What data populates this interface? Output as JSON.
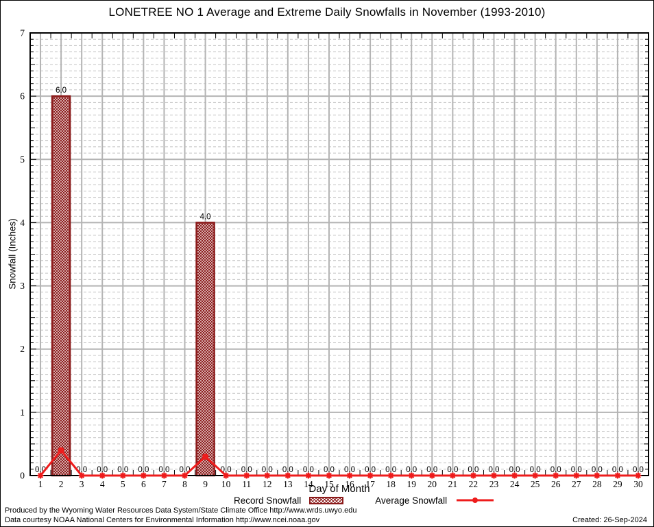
{
  "title": "LONETREE NO 1 Average and Extreme Daily Snowfalls in November (1993-2010)",
  "chart_data": {
    "type": "bar",
    "title": "LONETREE NO 1 Average and Extreme Daily Snowfalls in November (1993-2010)",
    "xlabel": "Day of Month",
    "ylabel": "Snowfall (Inches)",
    "ylim": [
      0,
      7
    ],
    "y_major_step": 1,
    "y_minor_step": 0.1,
    "grid": "major solid + minor dashed, vertical line per day",
    "legend_position": "bottom center",
    "categories": [
      1,
      2,
      3,
      4,
      5,
      6,
      7,
      8,
      9,
      10,
      11,
      12,
      13,
      14,
      15,
      16,
      17,
      18,
      19,
      20,
      21,
      22,
      23,
      24,
      25,
      26,
      27,
      28,
      29,
      30
    ],
    "series": [
      {
        "name": "Record Snowfall",
        "type": "bar",
        "values": [
          0,
          6,
          0,
          0,
          0,
          0,
          0,
          0,
          4,
          0,
          0,
          0,
          0,
          0,
          0,
          0,
          0,
          0,
          0,
          0,
          0,
          0,
          0,
          0,
          0,
          0,
          0,
          0,
          0,
          0
        ],
        "value_labels": [
          "0.0",
          "6.0",
          "0.0",
          "0.0",
          "0.0",
          "0.0",
          "0.0",
          "0.0",
          "4.0",
          "0.0",
          "0.0",
          "0.0",
          "0.0",
          "0.0",
          "0.0",
          "0.0",
          "0.0",
          "0.0",
          "0.0",
          "0.0",
          "0.0",
          "0.0",
          "0.0",
          "0.0",
          "0.0",
          "0.0",
          "0.0",
          "0.0",
          "0.0",
          "0.0"
        ]
      },
      {
        "name": "Average Snowfall",
        "type": "line",
        "values": [
          0,
          0.4,
          0,
          0,
          0,
          0,
          0,
          0,
          0.3,
          0,
          0,
          0,
          0,
          0,
          0,
          0,
          0,
          0,
          0,
          0,
          0,
          0,
          0,
          0,
          0,
          0,
          0,
          0,
          0,
          0
        ]
      }
    ],
    "colors": {
      "bar": "#8b1a1a",
      "line": "#ee1c1c",
      "grid_major": "#b4b4b4",
      "grid_minor": "#c3c3c3",
      "axis": "#000000"
    }
  },
  "legend": {
    "record_label": "Record Snowfall",
    "average_label": "Average Snowfall"
  },
  "footer": {
    "line1": "Produced by the Wyoming Water Resources Data System/State Climate Office http://www.wrds.uwyo.edu",
    "line2": "Data courtesy NOAA National Centers for Environmental Information http://www.ncei.noaa.gov",
    "created": "Created: 26-Sep-2024"
  }
}
